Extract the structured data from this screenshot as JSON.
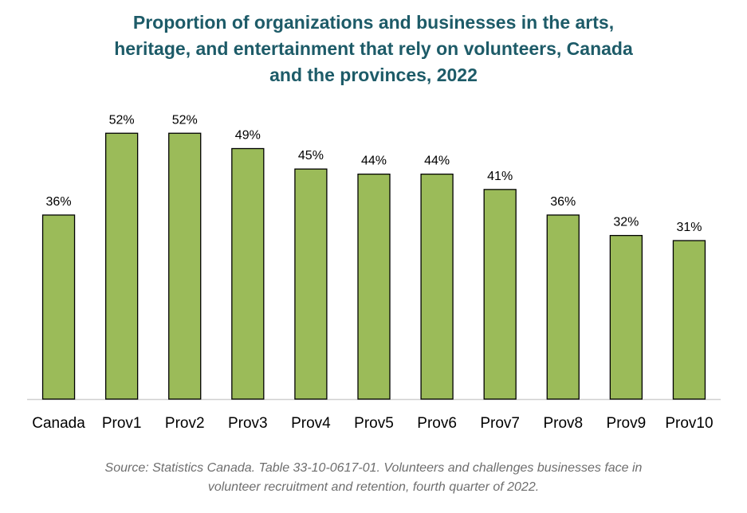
{
  "title_lines": [
    "Proportion of organizations and businesses in the arts,",
    "heritage, and entertainment that rely on volunteers, Canada",
    "and the provinces, 2022"
  ],
  "source_lines": [
    "Source: Statistics Canada. Table 33-10-0617-01. Volunteers and challenges businesses face in",
    "volunteer recruitment and retention, fourth quarter of 2022."
  ],
  "colors": {
    "bar": "#9bbb59",
    "bar_stroke": "#000000",
    "title": "#1d5b68",
    "source": "#6e6e6e",
    "axis": "#d0d0d0"
  },
  "chart_data": {
    "type": "bar",
    "title": "Proportion of organizations and businesses in the arts, heritage, and entertainment that rely on volunteers, Canada and the provinces, 2022",
    "categories": [
      "Canada",
      "Prov1",
      "Prov2",
      "Prov3",
      "Prov4",
      "Prov5",
      "Prov6",
      "Prov7",
      "Prov8",
      "Prov9",
      "Prov10"
    ],
    "values": [
      36,
      52,
      52,
      49,
      45,
      44,
      44,
      41,
      36,
      32,
      31
    ],
    "data_labels": [
      "36%",
      "52%",
      "52%",
      "49%",
      "45%",
      "44%",
      "44%",
      "41%",
      "36%",
      "32%",
      "31%"
    ],
    "ylim": [
      0,
      55
    ],
    "xlabel": "",
    "ylabel": "",
    "grid": false,
    "legend": "none"
  }
}
